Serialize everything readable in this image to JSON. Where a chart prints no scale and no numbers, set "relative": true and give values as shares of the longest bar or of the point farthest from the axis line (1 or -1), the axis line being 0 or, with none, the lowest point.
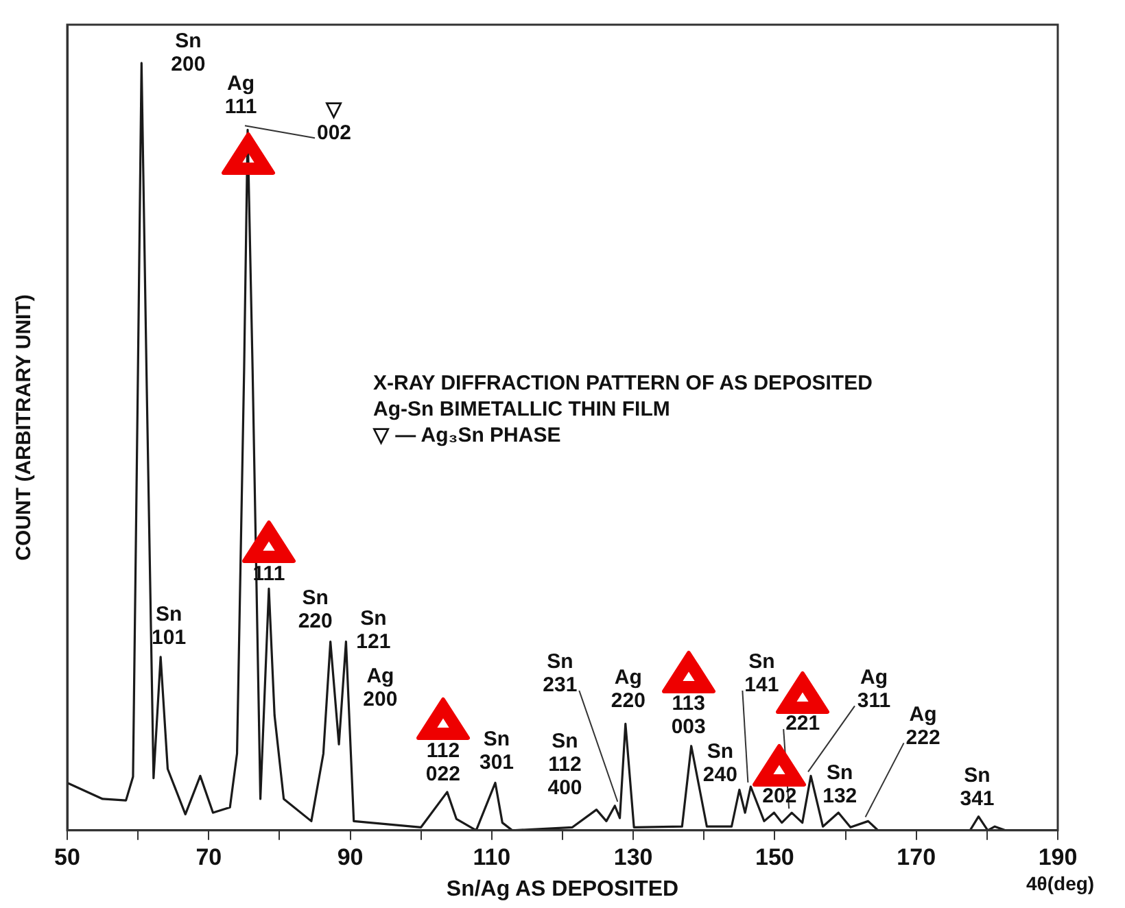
{
  "chart_data": {
    "type": "line",
    "relative": true,
    "xlabel": "Sn/Ag AS DEPOSITED",
    "ylabel": "COUNT (ARBITRARY UNIT)",
    "xlim": [
      50,
      190
    ],
    "xticks": [
      50,
      {
        "value": 60,
        "label": null
      },
      70,
      {
        "value": 80,
        "label": null
      },
      90,
      {
        "value": 100,
        "label": null
      },
      110,
      {
        "value": 120,
        "label": null
      },
      130,
      {
        "value": 140,
        "label": null
      },
      150,
      {
        "value": 160,
        "label": null
      },
      170,
      {
        "value": 180,
        "label": null
      },
      190
    ],
    "grid": false,
    "legend": false,
    "marker": "none",
    "line_style": "solid",
    "series": [
      {
        "color": "#1a1a1a",
        "x": [
          50,
          55,
          58.3,
          59.3,
          60,
          60.5,
          61.2,
          62.2,
          63.2,
          64.2,
          66.7,
          68.8,
          70.6,
          73,
          74,
          75,
          75.5,
          76.2,
          77.3,
          78.5,
          79.3,
          80.6,
          84.5,
          86.2,
          87.2,
          88.4,
          89.4,
          90.5,
          100,
          103.7,
          105,
          107.8,
          110.5,
          111.5,
          112.9,
          121.4,
          124.8,
          126.2,
          127.4,
          128.1,
          128.9,
          130.1,
          136.9,
          138.2,
          140.4,
          143.9,
          145,
          145.8,
          146.6,
          148.5,
          149.9,
          151,
          152.4,
          153.9,
          155.1,
          156.8,
          159,
          160.7,
          163.2,
          164.6,
          177.6,
          178.8,
          180.1,
          181.1,
          182.6,
          190
        ],
        "values": [
          0.062,
          0.041,
          0.039,
          0.07,
          0.6,
          1.0,
          0.6,
          0.068,
          0.226,
          0.08,
          0.021,
          0.071,
          0.023,
          0.03,
          0.1,
          0.6,
          0.913,
          0.6,
          0.041,
          0.315,
          0.15,
          0.041,
          0.012,
          0.1,
          0.246,
          0.112,
          0.246,
          0.012,
          0.004,
          0.05,
          0.015,
          0,
          0.062,
          0.01,
          0,
          0.004,
          0.027,
          0.012,
          0.032,
          0.016,
          0.139,
          0.004,
          0.005,
          0.11,
          0.005,
          0.005,
          0.053,
          0.023,
          0.057,
          0.012,
          0.023,
          0.01,
          0.023,
          0.01,
          0.071,
          0.005,
          0.023,
          0.004,
          0.012,
          0,
          0,
          0.018,
          0,
          0.005,
          0,
          0
        ]
      }
    ],
    "annotations": [
      {
        "text": "Sn\n200",
        "x": 60.5,
        "y": 1.0
      },
      {
        "text": "Ag\n111",
        "x": 75.5,
        "y": 0.913
      },
      {
        "text": "▽\n002",
        "x": 75.5,
        "y": 0.913
      },
      {
        "text": "Sn\n101",
        "x": 63.2,
        "y": 0.226
      },
      {
        "text": "111",
        "x": 78.5,
        "y": 0.315
      },
      {
        "text": "Sn\n220",
        "x": 87.2,
        "y": 0.246
      },
      {
        "text": "Sn\n121",
        "x": 89.4,
        "y": 0.246
      },
      {
        "text": "Ag\n200",
        "x": 89.4,
        "y": 0.246
      },
      {
        "text": "112\n022",
        "x": 103.7,
        "y": 0.05
      },
      {
        "text": "Sn\n301",
        "x": 110.5,
        "y": 0.062
      },
      {
        "text": "Sn\n231",
        "x": 127.4,
        "y": 0.032
      },
      {
        "text": "Sn\n112\n400",
        "x": 124.8,
        "y": 0.027
      },
      {
        "text": "Ag\n220",
        "x": 128.9,
        "y": 0.139
      },
      {
        "text": "113\n003",
        "x": 138.2,
        "y": 0.11
      },
      {
        "text": "Sn\n240",
        "x": 145,
        "y": 0.053
      },
      {
        "text": "Sn\n141",
        "x": 146.6,
        "y": 0.057
      },
      {
        "text": "221",
        "x": 152.4,
        "y": 0.023
      },
      {
        "text": "202",
        "x": 149.9,
        "y": 0.023
      },
      {
        "text": "Ag\n311",
        "x": 155.1,
        "y": 0.071
      },
      {
        "text": "Sn\n132",
        "x": 159,
        "y": 0.023
      },
      {
        "text": "Ag\n222",
        "x": 163.2,
        "y": 0.012
      },
      {
        "text": "Sn\n341",
        "x": 178.8,
        "y": 0.018
      },
      "X-RAY DIFFRACTION PATTERN OF AS DEPOSITED",
      "Ag-Sn BIMETALLIC THIN FILM",
      "▽ ― Ag₃Sn PHASE",
      "4θ(deg)"
    ]
  }
}
